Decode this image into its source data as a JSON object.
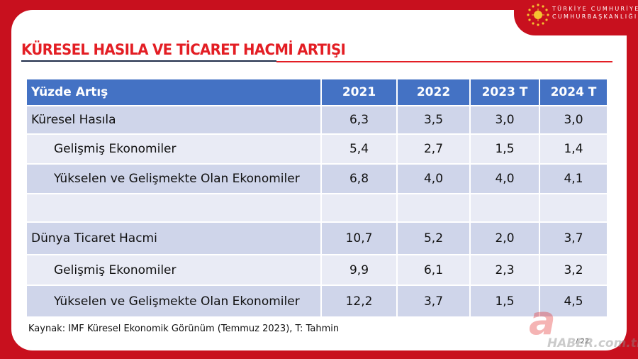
{
  "header": {
    "brand_line1": "TÜRKİYE CUMHURİYETİ",
    "brand_line2": "CUMHURBAŞKANLIĞI"
  },
  "title": "KÜRESEL HASILA VE TİCARET HACMİ ARTIŞI",
  "table": {
    "header_label": "Yüzde Artış",
    "years": [
      "2021",
      "2022",
      "2023 T",
      "2024 T"
    ],
    "rows": [
      {
        "label": "Küresel Hasıla",
        "values": [
          "6,3",
          "3,5",
          "3,0",
          "3,0"
        ]
      },
      {
        "label": "Gelişmiş Ekonomiler",
        "values": [
          "5,4",
          "2,7",
          "1,5",
          "1,4"
        ]
      },
      {
        "label": "Yükselen ve Gelişmekte Olan Ekonomiler",
        "values": [
          "6,8",
          "4,0",
          "4,0",
          "4,1"
        ]
      },
      {
        "label": "",
        "values": [
          "",
          "",
          "",
          ""
        ]
      },
      {
        "label": "Dünya Ticaret Hacmi",
        "values": [
          "10,7",
          "5,2",
          "2,0",
          "3,7"
        ]
      },
      {
        "label": "Gelişmiş Ekonomiler",
        "values": [
          "9,9",
          "6,1",
          "2,3",
          "3,2"
        ]
      },
      {
        "label": "Yükselen ve Gelişmekte Olan Ekonomiler",
        "values": [
          "12,2",
          "3,7",
          "1,5",
          "4,5"
        ]
      }
    ]
  },
  "source": "Kaynak: IMF Küresel Ekonomik Görünüm (Temmuz 2023), T: Tahmin",
  "page_number": "/ 22",
  "watermark": {
    "letter": "a",
    "text": "HABER.com.tr"
  },
  "colors": {
    "brand_red": "#c8101e",
    "title_red": "#e31e24",
    "header_blue": "#4472c4",
    "row_odd": "#cfd5ea",
    "row_even": "#e9ebf5"
  }
}
